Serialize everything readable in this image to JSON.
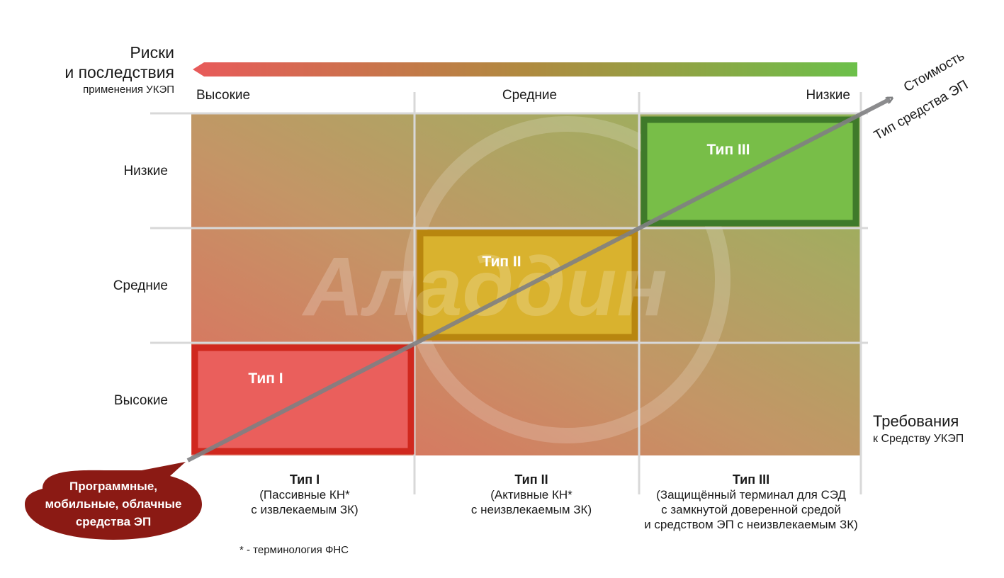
{
  "risk_axis": {
    "title_line1": "Риски",
    "title_line2": "и последствия",
    "subtitle": "применения УКЭП",
    "levels": [
      "Высокие",
      "Средние",
      "Низкие"
    ],
    "gradient_colors": [
      "#e85a5a",
      "#6cc04a"
    ]
  },
  "requirements_axis": {
    "title": "Требования",
    "subtitle": "к Средству УКЭП",
    "levels": [
      "Низкие",
      "Средние",
      "Высокие"
    ]
  },
  "boxes": [
    {
      "label": "Тип I",
      "fill": "#ea5f5c",
      "border": "#d0281e"
    },
    {
      "label": "Тип II",
      "fill": "#d9b22e",
      "border": "#b8860f"
    },
    {
      "label": "Тип III",
      "fill": "#78be48",
      "border": "#3f7a2a"
    }
  ],
  "columns": [
    {
      "title": "Тип I",
      "line1": "(Пассивные КН*",
      "line2": "с извлекаемым ЗК)",
      "line3": ""
    },
    {
      "title": "Тип II",
      "line1": "(Активные КН*",
      "line2": "с неизвлекаемым ЗК)",
      "line3": ""
    },
    {
      "title": "Тип III",
      "line1": "(Защищённый терминал для СЭД",
      "line2": "с замкнутой доверенной средой",
      "line3": "и средством ЭП с неизвлекаемым ЗК)"
    }
  ],
  "arrow": {
    "label1": "Стоимость",
    "label2": "Тип средства ЭП"
  },
  "callout": {
    "line1": "Программные,",
    "line2": "мобильные, облачные",
    "line3": "средства ЭП",
    "color": "#8b1a14"
  },
  "watermark": "Аладдин",
  "footnote": "* - терминология ФНС"
}
